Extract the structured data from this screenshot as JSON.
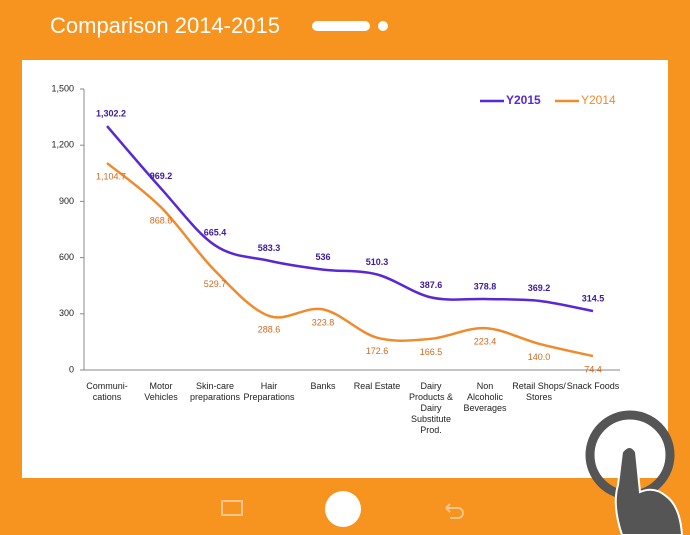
{
  "chart_data": {
    "type": "line",
    "title": "Comparison 2014-2015",
    "categories": [
      "Communi-cations",
      "Motor Vehicles",
      "Skin-care preparations",
      "Hair Preparations",
      "Banks",
      "Real Estate",
      "Dairy Products & Dairy Substitute Prod.",
      "Non Alcoholic Beverages",
      "Retail Shops/ Stores",
      "Snack Foods"
    ],
    "series": [
      {
        "name": "Y2015",
        "color": "#5a27d6",
        "values": [
          1302.2,
          969.2,
          665.4,
          583.3,
          536,
          510.3,
          387.6,
          378.8,
          369.2,
          314.5
        ],
        "value_labels": [
          "1,302.2",
          "969.2",
          "665.4",
          "583.3",
          "536",
          "510.3",
          "387.6",
          "378.8",
          "369.2",
          "314.5"
        ]
      },
      {
        "name": "Y2014",
        "color": "#f08a2c",
        "values": [
          1104.7,
          868.6,
          529.7,
          288.6,
          323.8,
          172.6,
          166.5,
          223.4,
          140.0,
          74.4
        ],
        "value_labels": [
          "1,104.7",
          "868.6",
          "529.7",
          "288.6",
          "323.8",
          "172.6",
          "166.5",
          "223.4",
          "140.0",
          "74.4"
        ]
      }
    ],
    "ylim": [
      0,
      1500
    ],
    "yticks": [
      0,
      300,
      600,
      900,
      {
        "value": 1200,
        "label": "1,200"
      },
      {
        "value": 1500,
        "label": "1,500"
      }
    ],
    "legend": "upper right"
  }
}
